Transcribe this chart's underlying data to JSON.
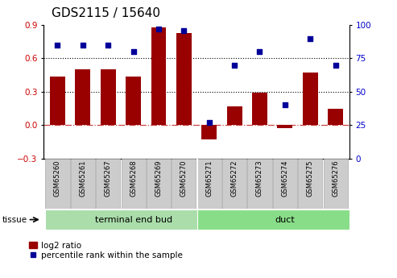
{
  "title": "GDS2115 / 15640",
  "samples": [
    "GSM65260",
    "GSM65261",
    "GSM65267",
    "GSM65268",
    "GSM65269",
    "GSM65270",
    "GSM65271",
    "GSM65272",
    "GSM65273",
    "GSM65274",
    "GSM65275",
    "GSM65276"
  ],
  "log2_ratio": [
    0.44,
    0.5,
    0.5,
    0.44,
    0.88,
    0.83,
    -0.13,
    0.17,
    0.29,
    -0.03,
    0.47,
    0.15
  ],
  "percentile_rank": [
    85,
    85,
    85,
    80,
    97,
    96,
    27,
    70,
    80,
    40,
    90,
    70
  ],
  "tissue_groups": [
    {
      "label": "terminal end bud",
      "start": 0,
      "end": 6,
      "color": "#aaddaa"
    },
    {
      "label": "duct",
      "start": 6,
      "end": 12,
      "color": "#88dd88"
    }
  ],
  "bar_color": "#990000",
  "dot_color": "#000099",
  "ylim_left": [
    -0.3,
    0.9
  ],
  "ylim_right": [
    0,
    100
  ],
  "yticks_left": [
    -0.3,
    0.0,
    0.3,
    0.6,
    0.9
  ],
  "yticks_right": [
    0,
    25,
    50,
    75,
    100
  ],
  "hlines": [
    0.3,
    0.6
  ],
  "zero_line_color": "#CC4444",
  "hline_color": "black",
  "background_color": "#ffffff",
  "plot_bg_color": "#ffffff",
  "tick_label_color_left": "#CC0000",
  "tick_label_color_right": "#0000CC",
  "title_fontsize": 11,
  "legend_label_red": "log2 ratio",
  "legend_label_blue": "percentile rank within the sample",
  "sample_box_color": "#cccccc",
  "sample_box_edge": "#aaaaaa"
}
